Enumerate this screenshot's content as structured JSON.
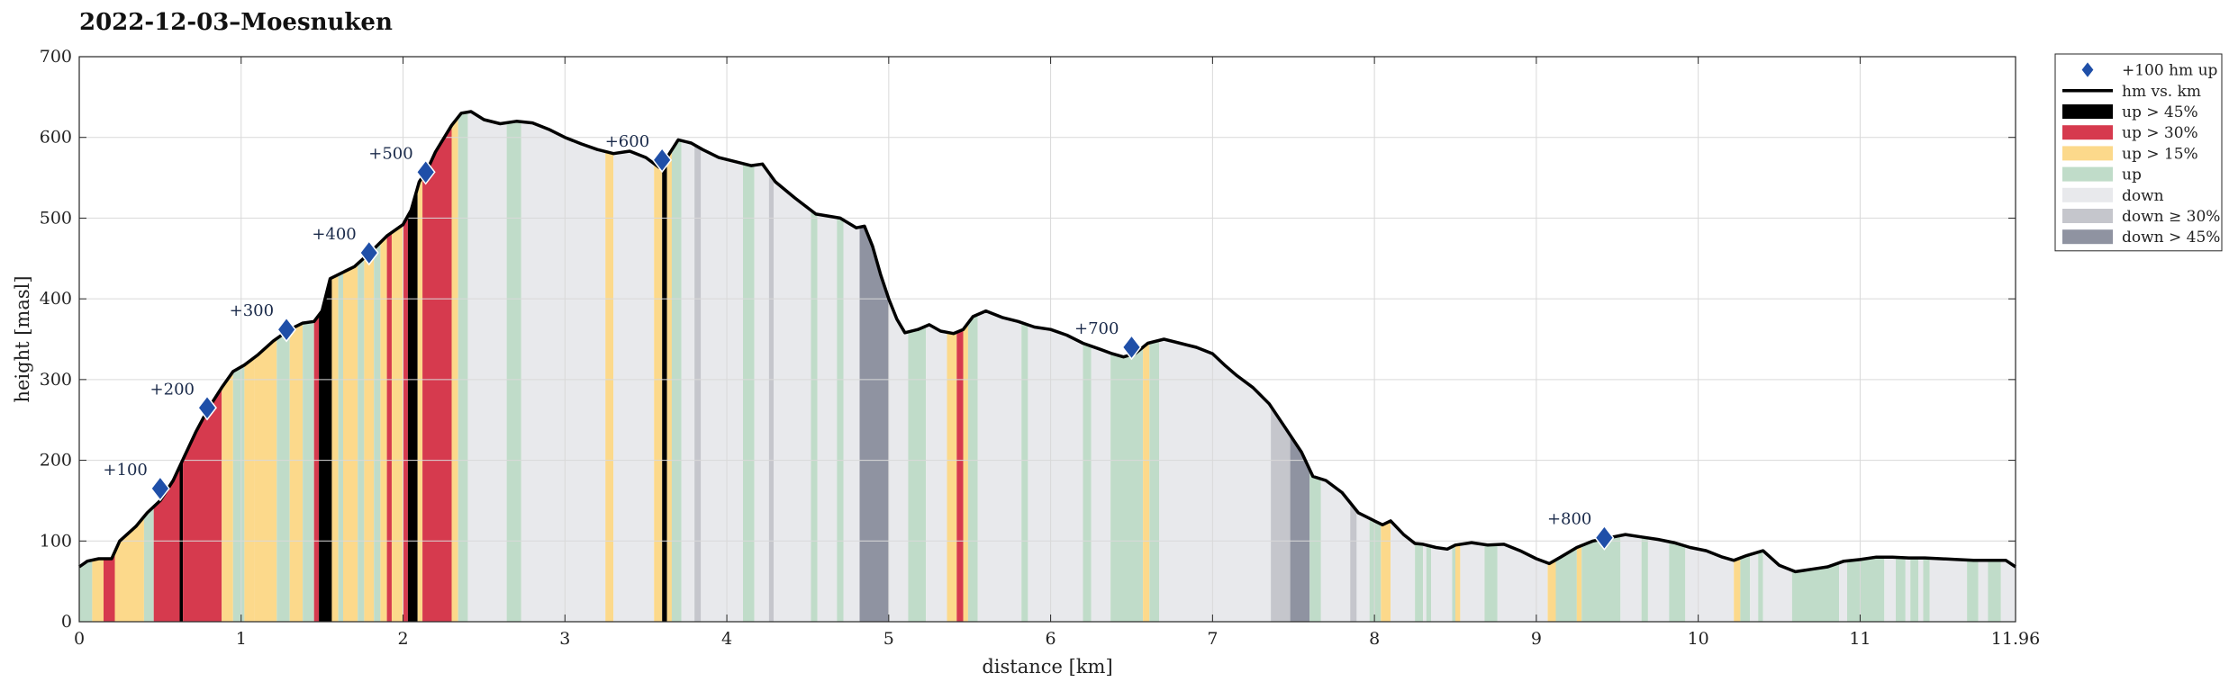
{
  "chart_data": {
    "type": "area",
    "title": "2022-12-03–Moesnuken",
    "xlabel": "distance [km]",
    "ylabel": "height [masl]",
    "xlim": [
      0,
      11.96
    ],
    "ylim": [
      0,
      700
    ],
    "x_ticks": [
      "0",
      "1",
      "2",
      "3",
      "4",
      "5",
      "6",
      "7",
      "8",
      "9",
      "10",
      "11",
      "11.96"
    ],
    "x_tick_values": [
      0,
      1,
      2,
      3,
      4,
      5,
      6,
      7,
      8,
      9,
      10,
      11,
      11.96
    ],
    "y_ticks": [
      0,
      100,
      200,
      300,
      400,
      500,
      600,
      700
    ],
    "grid": true,
    "legend_position": "top-right outside",
    "colors": {
      "line": "#000000",
      "marker": "#1f4fa8",
      "up_gt_45": "#000000",
      "up_gt_30": "#d63a4e",
      "up_gt_15": "#fcd98b",
      "up": "#c0dcc9",
      "down": "#e8e9ec",
      "down_ge_30": "#c5c6cc",
      "down_gt_45": "#8f93a1"
    },
    "legend": [
      {
        "label": "+100 hm up",
        "kind": "marker"
      },
      {
        "label": "hm vs. km",
        "kind": "line"
      },
      {
        "label": "up > 45%",
        "kind": "patch",
        "color_key": "up_gt_45"
      },
      {
        "label": "up > 30%",
        "kind": "patch",
        "color_key": "up_gt_30"
      },
      {
        "label": "up > 15%",
        "kind": "patch",
        "color_key": "up_gt_15"
      },
      {
        "label": "up",
        "kind": "patch",
        "color_key": "up"
      },
      {
        "label": "down",
        "kind": "patch",
        "color_key": "down"
      },
      {
        "label": "down ≥ 30%",
        "kind": "patch",
        "color_key": "down_ge_30"
      },
      {
        "label": "down > 45%",
        "kind": "patch",
        "color_key": "down_gt_45"
      }
    ],
    "profile": [
      [
        0,
        68
      ],
      [
        0.05,
        75
      ],
      [
        0.12,
        78
      ],
      [
        0.2,
        78
      ],
      [
        0.25,
        100
      ],
      [
        0.35,
        118
      ],
      [
        0.42,
        135
      ],
      [
        0.5,
        150
      ],
      [
        0.58,
        175
      ],
      [
        0.65,
        205
      ],
      [
        0.72,
        235
      ],
      [
        0.8,
        265
      ],
      [
        0.88,
        290
      ],
      [
        0.95,
        310
      ],
      [
        1.02,
        318
      ],
      [
        1.1,
        330
      ],
      [
        1.2,
        348
      ],
      [
        1.3,
        362
      ],
      [
        1.38,
        370
      ],
      [
        1.45,
        372
      ],
      [
        1.5,
        385
      ],
      [
        1.55,
        425
      ],
      [
        1.62,
        432
      ],
      [
        1.7,
        440
      ],
      [
        1.8,
        458
      ],
      [
        1.9,
        478
      ],
      [
        2.0,
        492
      ],
      [
        2.05,
        510
      ],
      [
        2.1,
        545
      ],
      [
        2.15,
        560
      ],
      [
        2.2,
        582
      ],
      [
        2.3,
        615
      ],
      [
        2.36,
        630
      ],
      [
        2.42,
        632
      ],
      [
        2.5,
        622
      ],
      [
        2.6,
        617
      ],
      [
        2.7,
        620
      ],
      [
        2.8,
        618
      ],
      [
        2.9,
        610
      ],
      [
        3.0,
        600
      ],
      [
        3.1,
        592
      ],
      [
        3.2,
        585
      ],
      [
        3.3,
        580
      ],
      [
        3.4,
        583
      ],
      [
        3.5,
        575
      ],
      [
        3.58,
        563
      ],
      [
        3.62,
        572
      ],
      [
        3.7,
        597
      ],
      [
        3.78,
        593
      ],
      [
        3.85,
        585
      ],
      [
        3.95,
        575
      ],
      [
        4.05,
        570
      ],
      [
        4.15,
        565
      ],
      [
        4.22,
        567
      ],
      [
        4.3,
        545
      ],
      [
        4.42,
        525
      ],
      [
        4.55,
        505
      ],
      [
        4.7,
        500
      ],
      [
        4.8,
        488
      ],
      [
        4.85,
        490
      ],
      [
        4.9,
        465
      ],
      [
        4.95,
        430
      ],
      [
        5.0,
        400
      ],
      [
        5.05,
        375
      ],
      [
        5.1,
        358
      ],
      [
        5.18,
        362
      ],
      [
        5.25,
        368
      ],
      [
        5.32,
        360
      ],
      [
        5.4,
        357
      ],
      [
        5.46,
        362
      ],
      [
        5.52,
        378
      ],
      [
        5.6,
        385
      ],
      [
        5.7,
        377
      ],
      [
        5.8,
        372
      ],
      [
        5.9,
        365
      ],
      [
        6.0,
        362
      ],
      [
        6.1,
        355
      ],
      [
        6.2,
        345
      ],
      [
        6.3,
        338
      ],
      [
        6.38,
        332
      ],
      [
        6.45,
        328
      ],
      [
        6.52,
        332
      ],
      [
        6.6,
        345
      ],
      [
        6.7,
        350
      ],
      [
        6.8,
        345
      ],
      [
        6.9,
        340
      ],
      [
        7.0,
        332
      ],
      [
        7.08,
        317
      ],
      [
        7.15,
        305
      ],
      [
        7.25,
        290
      ],
      [
        7.35,
        270
      ],
      [
        7.45,
        240
      ],
      [
        7.55,
        210
      ],
      [
        7.62,
        180
      ],
      [
        7.7,
        175
      ],
      [
        7.8,
        160
      ],
      [
        7.9,
        135
      ],
      [
        8.0,
        125
      ],
      [
        8.05,
        120
      ],
      [
        8.1,
        125
      ],
      [
        8.18,
        108
      ],
      [
        8.25,
        97
      ],
      [
        8.3,
        96
      ],
      [
        8.38,
        92
      ],
      [
        8.45,
        90
      ],
      [
        8.5,
        95
      ],
      [
        8.6,
        98
      ],
      [
        8.7,
        95
      ],
      [
        8.8,
        96
      ],
      [
        8.9,
        88
      ],
      [
        9.0,
        78
      ],
      [
        9.08,
        72
      ],
      [
        9.15,
        80
      ],
      [
        9.25,
        92
      ],
      [
        9.35,
        100
      ],
      [
        9.45,
        104
      ],
      [
        9.55,
        108
      ],
      [
        9.65,
        105
      ],
      [
        9.75,
        102
      ],
      [
        9.85,
        98
      ],
      [
        9.95,
        92
      ],
      [
        10.05,
        88
      ],
      [
        10.15,
        80
      ],
      [
        10.22,
        76
      ],
      [
        10.3,
        82
      ],
      [
        10.4,
        88
      ],
      [
        10.5,
        70
      ],
      [
        10.6,
        62
      ],
      [
        10.7,
        65
      ],
      [
        10.8,
        68
      ],
      [
        10.9,
        75
      ],
      [
        11.0,
        77
      ],
      [
        11.1,
        80
      ],
      [
        11.2,
        80
      ],
      [
        11.3,
        79
      ],
      [
        11.4,
        79
      ],
      [
        11.5,
        78
      ],
      [
        11.6,
        77
      ],
      [
        11.7,
        76
      ],
      [
        11.8,
        76
      ],
      [
        11.9,
        76
      ],
      [
        11.96,
        68
      ]
    ],
    "bands": [
      {
        "x0": 0.0,
        "x1": 0.08,
        "cat": "up"
      },
      {
        "x0": 0.08,
        "x1": 0.15,
        "cat": "up_gt_15"
      },
      {
        "x0": 0.15,
        "x1": 0.22,
        "cat": "up_gt_30"
      },
      {
        "x0": 0.22,
        "x1": 0.4,
        "cat": "up_gt_15"
      },
      {
        "x0": 0.4,
        "x1": 0.46,
        "cat": "up"
      },
      {
        "x0": 0.46,
        "x1": 0.62,
        "cat": "up_gt_30"
      },
      {
        "x0": 0.62,
        "x1": 0.64,
        "cat": "up_gt_45"
      },
      {
        "x0": 0.64,
        "x1": 0.88,
        "cat": "up_gt_30"
      },
      {
        "x0": 0.88,
        "x1": 0.95,
        "cat": "up_gt_15"
      },
      {
        "x0": 0.95,
        "x1": 1.02,
        "cat": "up"
      },
      {
        "x0": 1.02,
        "x1": 1.08,
        "cat": "up_gt_15"
      },
      {
        "x0": 1.08,
        "x1": 1.22,
        "cat": "up_gt_15"
      },
      {
        "x0": 1.22,
        "x1": 1.3,
        "cat": "up"
      },
      {
        "x0": 1.3,
        "x1": 1.38,
        "cat": "up_gt_15"
      },
      {
        "x0": 1.38,
        "x1": 1.45,
        "cat": "up"
      },
      {
        "x0": 1.45,
        "x1": 1.48,
        "cat": "up_gt_30"
      },
      {
        "x0": 1.48,
        "x1": 1.56,
        "cat": "up_gt_45"
      },
      {
        "x0": 1.56,
        "x1": 1.6,
        "cat": "up_gt_15"
      },
      {
        "x0": 1.6,
        "x1": 1.63,
        "cat": "up"
      },
      {
        "x0": 1.63,
        "x1": 1.72,
        "cat": "up_gt_15"
      },
      {
        "x0": 1.72,
        "x1": 1.76,
        "cat": "up"
      },
      {
        "x0": 1.76,
        "x1": 1.82,
        "cat": "up_gt_15"
      },
      {
        "x0": 1.82,
        "x1": 1.86,
        "cat": "up"
      },
      {
        "x0": 1.86,
        "x1": 1.9,
        "cat": "up_gt_15"
      },
      {
        "x0": 1.9,
        "x1": 1.93,
        "cat": "up_gt_30"
      },
      {
        "x0": 1.93,
        "x1": 2.0,
        "cat": "up_gt_15"
      },
      {
        "x0": 2.0,
        "x1": 2.03,
        "cat": "up_gt_30"
      },
      {
        "x0": 2.03,
        "x1": 2.09,
        "cat": "up_gt_45"
      },
      {
        "x0": 2.09,
        "x1": 2.12,
        "cat": "up_gt_15"
      },
      {
        "x0": 2.12,
        "x1": 2.3,
        "cat": "up_gt_30"
      },
      {
        "x0": 2.3,
        "x1": 2.34,
        "cat": "up_gt_15"
      },
      {
        "x0": 2.34,
        "x1": 2.4,
        "cat": "up"
      },
      {
        "x0": 2.4,
        "x1": 2.64,
        "cat": "down"
      },
      {
        "x0": 2.64,
        "x1": 2.73,
        "cat": "up"
      },
      {
        "x0": 2.73,
        "x1": 3.25,
        "cat": "down"
      },
      {
        "x0": 3.25,
        "x1": 3.3,
        "cat": "up_gt_15"
      },
      {
        "x0": 3.3,
        "x1": 3.55,
        "cat": "down"
      },
      {
        "x0": 3.55,
        "x1": 3.6,
        "cat": "up_gt_15"
      },
      {
        "x0": 3.6,
        "x1": 3.63,
        "cat": "up_gt_45"
      },
      {
        "x0": 3.63,
        "x1": 3.66,
        "cat": "up_gt_15"
      },
      {
        "x0": 3.66,
        "x1": 3.72,
        "cat": "up"
      },
      {
        "x0": 3.72,
        "x1": 3.8,
        "cat": "down"
      },
      {
        "x0": 3.8,
        "x1": 3.84,
        "cat": "down_ge_30"
      },
      {
        "x0": 3.84,
        "x1": 4.1,
        "cat": "down"
      },
      {
        "x0": 4.1,
        "x1": 4.17,
        "cat": "up"
      },
      {
        "x0": 4.17,
        "x1": 4.26,
        "cat": "down"
      },
      {
        "x0": 4.26,
        "x1": 4.29,
        "cat": "down_ge_30"
      },
      {
        "x0": 4.29,
        "x1": 4.52,
        "cat": "down"
      },
      {
        "x0": 4.52,
        "x1": 4.56,
        "cat": "up"
      },
      {
        "x0": 4.56,
        "x1": 4.68,
        "cat": "down"
      },
      {
        "x0": 4.68,
        "x1": 4.72,
        "cat": "up"
      },
      {
        "x0": 4.72,
        "x1": 4.82,
        "cat": "down"
      },
      {
        "x0": 4.82,
        "x1": 5.0,
        "cat": "down_gt_45"
      },
      {
        "x0": 5.0,
        "x1": 5.12,
        "cat": "down"
      },
      {
        "x0": 5.12,
        "x1": 5.23,
        "cat": "up"
      },
      {
        "x0": 5.23,
        "x1": 5.36,
        "cat": "down"
      },
      {
        "x0": 5.36,
        "x1": 5.42,
        "cat": "up_gt_15"
      },
      {
        "x0": 5.42,
        "x1": 5.46,
        "cat": "up_gt_30"
      },
      {
        "x0": 5.46,
        "x1": 5.49,
        "cat": "up_gt_15"
      },
      {
        "x0": 5.49,
        "x1": 5.55,
        "cat": "up"
      },
      {
        "x0": 5.55,
        "x1": 5.82,
        "cat": "down"
      },
      {
        "x0": 5.82,
        "x1": 5.86,
        "cat": "up"
      },
      {
        "x0": 5.86,
        "x1": 6.2,
        "cat": "down"
      },
      {
        "x0": 6.2,
        "x1": 6.25,
        "cat": "up"
      },
      {
        "x0": 6.25,
        "x1": 6.37,
        "cat": "down"
      },
      {
        "x0": 6.37,
        "x1": 6.57,
        "cat": "up"
      },
      {
        "x0": 6.57,
        "x1": 6.61,
        "cat": "up_gt_15"
      },
      {
        "x0": 6.61,
        "x1": 6.67,
        "cat": "up"
      },
      {
        "x0": 6.67,
        "x1": 7.36,
        "cat": "down"
      },
      {
        "x0": 7.36,
        "x1": 7.48,
        "cat": "down_ge_30"
      },
      {
        "x0": 7.48,
        "x1": 7.6,
        "cat": "down_gt_45"
      },
      {
        "x0": 7.6,
        "x1": 7.67,
        "cat": "up"
      },
      {
        "x0": 7.67,
        "x1": 7.85,
        "cat": "down"
      },
      {
        "x0": 7.85,
        "x1": 7.89,
        "cat": "down_ge_30"
      },
      {
        "x0": 7.89,
        "x1": 7.97,
        "cat": "down"
      },
      {
        "x0": 7.97,
        "x1": 8.04,
        "cat": "up"
      },
      {
        "x0": 8.04,
        "x1": 8.1,
        "cat": "up_gt_15"
      },
      {
        "x0": 8.1,
        "x1": 8.25,
        "cat": "down"
      },
      {
        "x0": 8.25,
        "x1": 8.3,
        "cat": "up"
      },
      {
        "x0": 8.3,
        "x1": 8.32,
        "cat": "down"
      },
      {
        "x0": 8.32,
        "x1": 8.35,
        "cat": "up"
      },
      {
        "x0": 8.35,
        "x1": 8.48,
        "cat": "down"
      },
      {
        "x0": 8.48,
        "x1": 8.5,
        "cat": "up"
      },
      {
        "x0": 8.5,
        "x1": 8.53,
        "cat": "up_gt_15"
      },
      {
        "x0": 8.53,
        "x1": 8.68,
        "cat": "down"
      },
      {
        "x0": 8.68,
        "x1": 8.76,
        "cat": "up"
      },
      {
        "x0": 8.76,
        "x1": 9.07,
        "cat": "down"
      },
      {
        "x0": 9.07,
        "x1": 9.12,
        "cat": "up_gt_15"
      },
      {
        "x0": 9.12,
        "x1": 9.25,
        "cat": "up"
      },
      {
        "x0": 9.25,
        "x1": 9.28,
        "cat": "up_gt_15"
      },
      {
        "x0": 9.28,
        "x1": 9.52,
        "cat": "up"
      },
      {
        "x0": 9.52,
        "x1": 9.65,
        "cat": "down"
      },
      {
        "x0": 9.65,
        "x1": 9.69,
        "cat": "up"
      },
      {
        "x0": 9.69,
        "x1": 9.82,
        "cat": "down"
      },
      {
        "x0": 9.82,
        "x1": 9.92,
        "cat": "up"
      },
      {
        "x0": 9.92,
        "x1": 10.22,
        "cat": "down"
      },
      {
        "x0": 10.22,
        "x1": 10.26,
        "cat": "up_gt_15"
      },
      {
        "x0": 10.26,
        "x1": 10.32,
        "cat": "up"
      },
      {
        "x0": 10.32,
        "x1": 10.37,
        "cat": "down"
      },
      {
        "x0": 10.37,
        "x1": 10.4,
        "cat": "up"
      },
      {
        "x0": 10.4,
        "x1": 10.58,
        "cat": "down"
      },
      {
        "x0": 10.58,
        "x1": 10.87,
        "cat": "up"
      },
      {
        "x0": 10.87,
        "x1": 10.92,
        "cat": "down"
      },
      {
        "x0": 10.92,
        "x1": 11.15,
        "cat": "up"
      },
      {
        "x0": 11.15,
        "x1": 11.22,
        "cat": "down"
      },
      {
        "x0": 11.22,
        "x1": 11.28,
        "cat": "up"
      },
      {
        "x0": 11.28,
        "x1": 11.31,
        "cat": "down"
      },
      {
        "x0": 11.31,
        "x1": 11.36,
        "cat": "up"
      },
      {
        "x0": 11.36,
        "x1": 11.39,
        "cat": "down"
      },
      {
        "x0": 11.39,
        "x1": 11.43,
        "cat": "up"
      },
      {
        "x0": 11.43,
        "x1": 11.66,
        "cat": "down"
      },
      {
        "x0": 11.66,
        "x1": 11.73,
        "cat": "up"
      },
      {
        "x0": 11.73,
        "x1": 11.79,
        "cat": "down"
      },
      {
        "x0": 11.79,
        "x1": 11.87,
        "cat": "up"
      },
      {
        "x0": 11.87,
        "x1": 11.96,
        "cat": "down"
      }
    ],
    "markers": [
      {
        "x": 0.5,
        "y": 165,
        "label": "+100"
      },
      {
        "x": 0.79,
        "y": 265,
        "label": "+200"
      },
      {
        "x": 1.28,
        "y": 362,
        "label": "+300"
      },
      {
        "x": 1.79,
        "y": 457,
        "label": "+400"
      },
      {
        "x": 2.14,
        "y": 557,
        "label": "+500"
      },
      {
        "x": 3.6,
        "y": 572,
        "label": "+600"
      },
      {
        "x": 6.5,
        "y": 340,
        "label": "+700"
      },
      {
        "x": 9.42,
        "y": 104,
        "label": "+800"
      }
    ]
  }
}
